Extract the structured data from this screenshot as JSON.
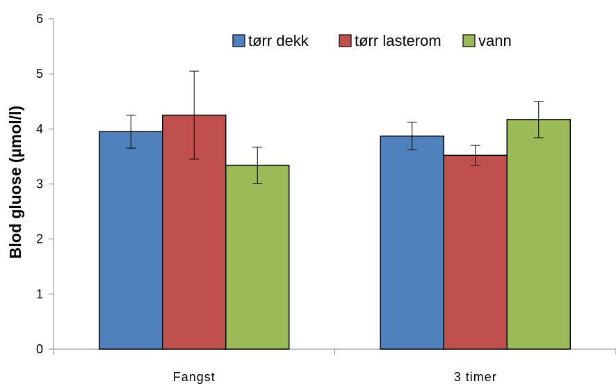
{
  "chart_data": {
    "type": "bar",
    "categories": [
      "Fangst",
      "3 timer"
    ],
    "series": [
      {
        "name": "tørr dekk",
        "color": "#4f81bd",
        "values": [
          3.95,
          3.87
        ],
        "errors": [
          0.3,
          0.25
        ]
      },
      {
        "name": "tørr lasterom",
        "color": "#c0504d",
        "values": [
          4.25,
          3.52
        ],
        "errors": [
          0.8,
          0.18
        ]
      },
      {
        "name": "vann",
        "color": "#9bbb59",
        "values": [
          3.34,
          4.17
        ],
        "errors": [
          0.33,
          0.33
        ]
      }
    ],
    "title": "",
    "xlabel": "",
    "ylabel": "Blod gluose (µmol/l)",
    "ylim": [
      0,
      6
    ],
    "yticks": [
      0,
      1,
      2,
      3,
      4,
      5,
      6
    ],
    "grid": false,
    "legend_position": "top-right"
  }
}
